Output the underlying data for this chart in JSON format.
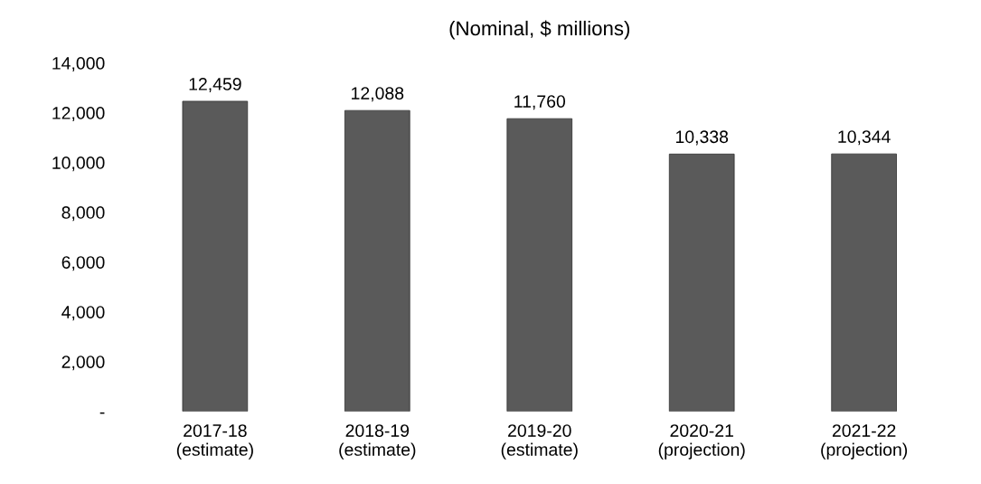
{
  "chart_data": {
    "type": "bar",
    "title": "(Nominal, $ millions)",
    "categories": [
      "2017-18\n(estimate)",
      "2018-19\n(estimate)",
      "2019-20\n(estimate)",
      "2020-21\n(projection)",
      "2021-22\n(projection)"
    ],
    "values": [
      12459,
      12088,
      11760,
      10338,
      10344
    ],
    "color": "#5a5a5a",
    "ylim": [
      0,
      14000
    ],
    "yticks": [
      {
        "value": 0,
        "label": "-"
      },
      {
        "value": 2000,
        "label": "2,000"
      },
      {
        "value": 4000,
        "label": "4,000"
      },
      {
        "value": 6000,
        "label": "6,000"
      },
      {
        "value": 8000,
        "label": "8,000"
      },
      {
        "value": 10000,
        "label": "10,000"
      },
      {
        "value": 12000,
        "label": "12,000"
      },
      {
        "value": 14000,
        "label": "14,000"
      }
    ],
    "value_labels": [
      "12,459",
      "12,088",
      "11,760",
      "10,338",
      "10,344"
    ],
    "grid": false
  }
}
